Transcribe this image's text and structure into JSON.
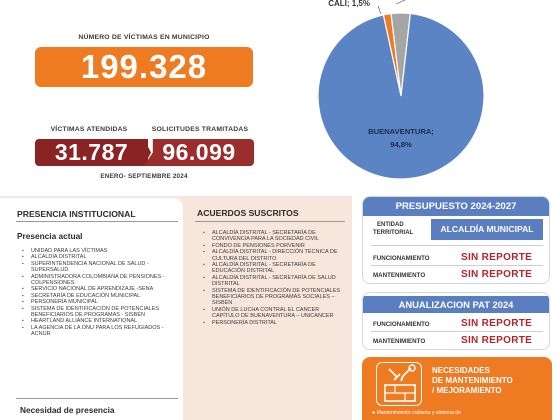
{
  "metrics": {
    "victimas_label": "NÚMERO DE VÍCTIMAS EN MUNICIPIO",
    "victimas_value": "199.328",
    "atendidas_label": "VÍCTIMAS ATENDIDAS",
    "atendidas_value": "31.787",
    "solicitudes_label": "SOLICITUDES TRAMITADAS",
    "solicitudes_value": "96.099",
    "periodo": "ENERO- SEPTIEMBRE 2024"
  },
  "chart_data": {
    "type": "pie",
    "slices": [
      {
        "label": "BUENAVENTURA",
        "value": 94.8,
        "display": "BUENAVENTURA;\n94,8%",
        "color": "#5b84c4"
      },
      {
        "label": "CALI",
        "value": 1.5,
        "display": "CALI; 1,5%",
        "color": "#ee7b22"
      },
      {
        "label": "",
        "value": 3.7,
        "display": "",
        "color": "#a5a5a5"
      }
    ],
    "labels": {
      "buenaventura_line1": "BUENAVENTURA;",
      "buenaventura_line2": "94,8%",
      "cali": "CALI; 1,5%"
    }
  },
  "presencia": {
    "title": "PRESENCIA INSTITUCIONAL",
    "subtitle": "Presencia actual",
    "items": [
      "UNIDAD PARA LAS VÍCTIMAS",
      "ALCALDÍA DISTRITAL",
      "SUPERINTENDENCIA NACIONAL DE SALUD - SUPERSALUD",
      "ADMINISTRADORA COLOMBIANA DE PENSIONES - COLPENSIONES",
      "SERVICIO NACIONAL DE APRENDIZAJE -SENA",
      "SECRETARÍA DE EDUCACIÓN MUNICIPAL",
      "PERSONERÍA MUNICIPAL",
      "SISTEMA DE IDENTIFICACIÓN DE POTENCIALES BENEFICIARIOS DE PROGRAMAS - SISBÉN",
      "HEARTLAND ALLIANCE INTERNATIONAL",
      "LA AGENCIA DE LA ONU PARA LOS REFUGIADOS - ACNUR"
    ],
    "necesidad": "Necesidad de presencia"
  },
  "acuerdos": {
    "title": "ACUERDOS SUSCRITOS",
    "items": [
      "ALCALDÍA DISTRITAL - SECRETARÍA DE CONVIVENCIA PARA LA SOCIEDAD CIVIL",
      "FONDO DE PENSIONES PORVENIR",
      "ALCALDÍA DISTRITAL - DIRECCIÓN TÉCNICA DE CULTURA DEL DISTRITO",
      "ALCALDÍA DISTRITAL - SECRETARÍA DE EDUCACIÓN DISTRITAL",
      "ALCALDÍA DISTRITAL - SECRETARÍA DE SALUD DISTRITAL",
      "SISTEMA DE IDENTIFICACIÓN DE POTENCIALES BENEFICIARIOS DE PROGRAMAS SOCIALES – SISBÉN",
      "UNIÓN DE LUCHA CONTRAL EL CANCER CAPÍTULO DE BUENAVENTURA – UNICANCER",
      "PERSONERÍA DISTRITAL"
    ]
  },
  "presupuesto": {
    "title": "PRESUPUESTO 2024-2027",
    "entidad_label_1": "ENTIDAD",
    "entidad_label_2": "TERRITORIAL",
    "entidad_value": "ALCALDÍA MUNICIPAL",
    "funcionamiento_label": "FUNCIONAMIENTO",
    "funcionamiento_value": "SIN REPORTE",
    "mantenimiento_label": "MANTENIMIENTO",
    "mantenimiento_value": "SIN REPORTE"
  },
  "pat": {
    "title": "ANUALIZACION PAT 2024",
    "funcionamiento_label": "Funcionamiento",
    "funcionamiento_value": "SIN REPORTE",
    "mantenimiento_label": "Mantenimiento",
    "mantenimiento_value": "SIN REPORTE"
  },
  "necesidades": {
    "title_1": "NECESIDADES",
    "title_2": "DE MANTENIMIENTO",
    "title_3": "/ MEJORAMIENTO",
    "item": "Mantenimiento cubierta y sistema de"
  },
  "colors": {
    "orange": "#ee7b22",
    "maroon": "#8a2424",
    "blue": "#5b84c4",
    "red_text": "#b0262b",
    "beige": "#f6e6dc"
  }
}
